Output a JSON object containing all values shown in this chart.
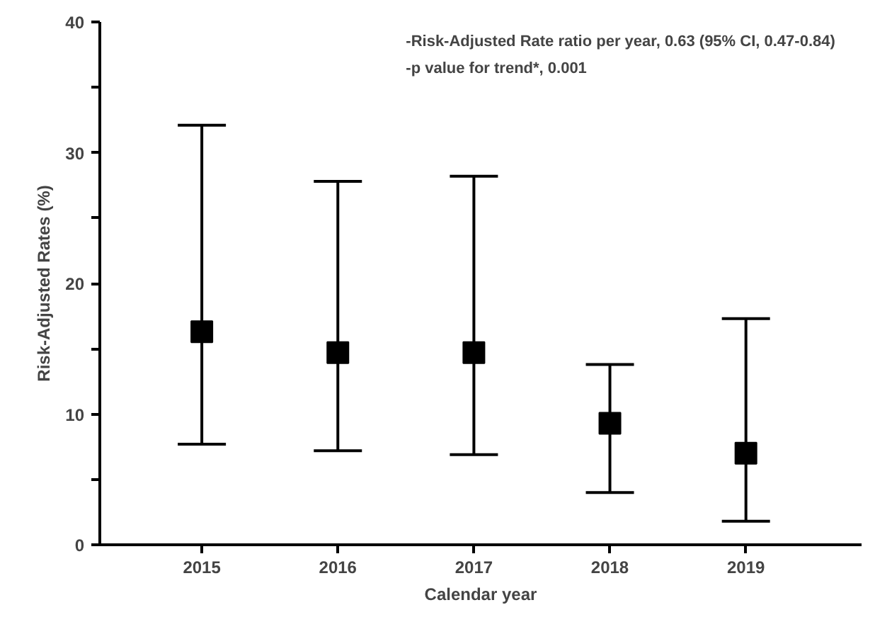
{
  "chart_data": {
    "type": "scatter",
    "xlabel": "Calendar year",
    "ylabel": "Risk-Adjusted Rates (%)",
    "categories": [
      "2015",
      "2016",
      "2017",
      "2018",
      "2019"
    ],
    "series": [
      {
        "color": "#000000",
        "values": [
          16.3,
          14.7,
          14.7,
          9.3,
          7.0
        ],
        "errors": [
          [
            7.7,
            32.1
          ],
          [
            7.2,
            27.8
          ],
          [
            6.9,
            28.2
          ],
          [
            4.0,
            13.8
          ],
          [
            1.8,
            17.3
          ]
        ]
      }
    ],
    "marker": "square",
    "grid": false,
    "ylim": [
      0,
      40
    ],
    "yticks": [
      0,
      {
        "value": 5,
        "label": null
      },
      10,
      {
        "value": 15,
        "label": null
      },
      20,
      {
        "value": 25,
        "label": null
      },
      30,
      {
        "value": 35,
        "label": null
      },
      40
    ],
    "annotations": [
      "-Risk-Adjusted Rate ratio per year, 0.63 (95% CI, 0.47-0.84)",
      "-p value for trend*, 0.001"
    ]
  }
}
